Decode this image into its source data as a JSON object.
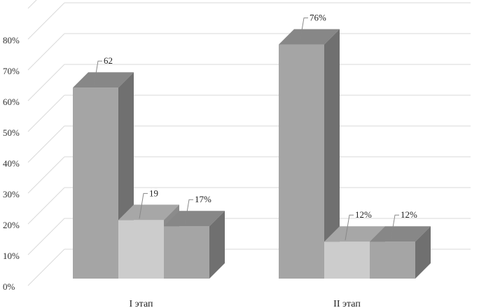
{
  "chart_data": {
    "type": "bar",
    "categories": [
      "I этап",
      "II этап"
    ],
    "series": [
      {
        "values": [
          62,
          76
        ],
        "color": "#a5a5a5"
      },
      {
        "values": [
          19,
          12
        ],
        "color": "#cccccc"
      },
      {
        "values": [
          17,
          12
        ],
        "color": "#a5a5a5"
      }
    ],
    "data_labels": [
      [
        "62",
        "76%"
      ],
      [
        "19",
        "12%"
      ],
      [
        "17%",
        "12%"
      ]
    ],
    "y_ticks": [
      "0%",
      "10%",
      "20%",
      "30%",
      "40%",
      "50%",
      "60%",
      "70%",
      "80%"
    ],
    "ylim": [
      0,
      90
    ],
    "grid": true,
    "style": "3d-column"
  }
}
